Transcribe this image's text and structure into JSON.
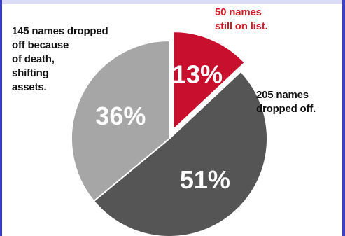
{
  "chart_data": {
    "type": "pie",
    "title": "",
    "slices": [
      {
        "label": "50 names still on list.",
        "value": 13,
        "display": "13%",
        "color": "#c8102e",
        "exploded": true
      },
      {
        "label": "205 names dropped off.",
        "value": 51,
        "display": "51%",
        "color": "#555555",
        "exploded": false
      },
      {
        "label": "145 names dropped off because of death, shifting assets.",
        "value": 36,
        "display": "36%",
        "color": "#a6a6a6",
        "exploded": false
      }
    ]
  },
  "callouts": {
    "top": [
      "50 names",
      "still on list."
    ],
    "right": [
      "205 names",
      "dropped off."
    ],
    "left": [
      "145 names dropped",
      "off because",
      "of death,",
      "shifting",
      "assets."
    ]
  }
}
